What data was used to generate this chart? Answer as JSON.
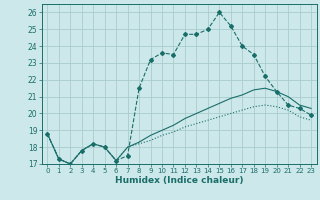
{
  "xlabel": "Humidex (Indice chaleur)",
  "bg_color": "#cce8ea",
  "grid_color": "#aacccc",
  "line_color": "#1a6e6a",
  "xlim": [
    -0.5,
    23.5
  ],
  "ylim": [
    17,
    26.5
  ],
  "x_ticks": [
    0,
    1,
    2,
    3,
    4,
    5,
    6,
    7,
    8,
    9,
    10,
    11,
    12,
    13,
    14,
    15,
    16,
    17,
    18,
    19,
    20,
    21,
    22,
    23
  ],
  "y_ticks": [
    17,
    18,
    19,
    20,
    21,
    22,
    23,
    24,
    25,
    26
  ],
  "series1": [
    18.8,
    17.3,
    17.0,
    17.8,
    18.2,
    18.0,
    17.2,
    17.5,
    21.5,
    23.2,
    23.6,
    23.5,
    24.7,
    24.7,
    25.0,
    26.0,
    25.2,
    24.0,
    23.5,
    22.2,
    21.3,
    20.5,
    20.3,
    19.9
  ],
  "series2": [
    18.8,
    17.3,
    17.0,
    17.8,
    18.2,
    18.0,
    17.2,
    18.0,
    18.3,
    18.7,
    19.0,
    19.3,
    19.7,
    20.0,
    20.3,
    20.6,
    20.9,
    21.1,
    21.4,
    21.5,
    21.3,
    21.0,
    20.5,
    20.3
  ],
  "series3": [
    18.8,
    17.3,
    17.0,
    17.8,
    18.2,
    18.0,
    17.2,
    18.0,
    18.2,
    18.4,
    18.7,
    18.9,
    19.2,
    19.4,
    19.6,
    19.8,
    20.0,
    20.2,
    20.4,
    20.5,
    20.4,
    20.2,
    19.8,
    19.6
  ]
}
